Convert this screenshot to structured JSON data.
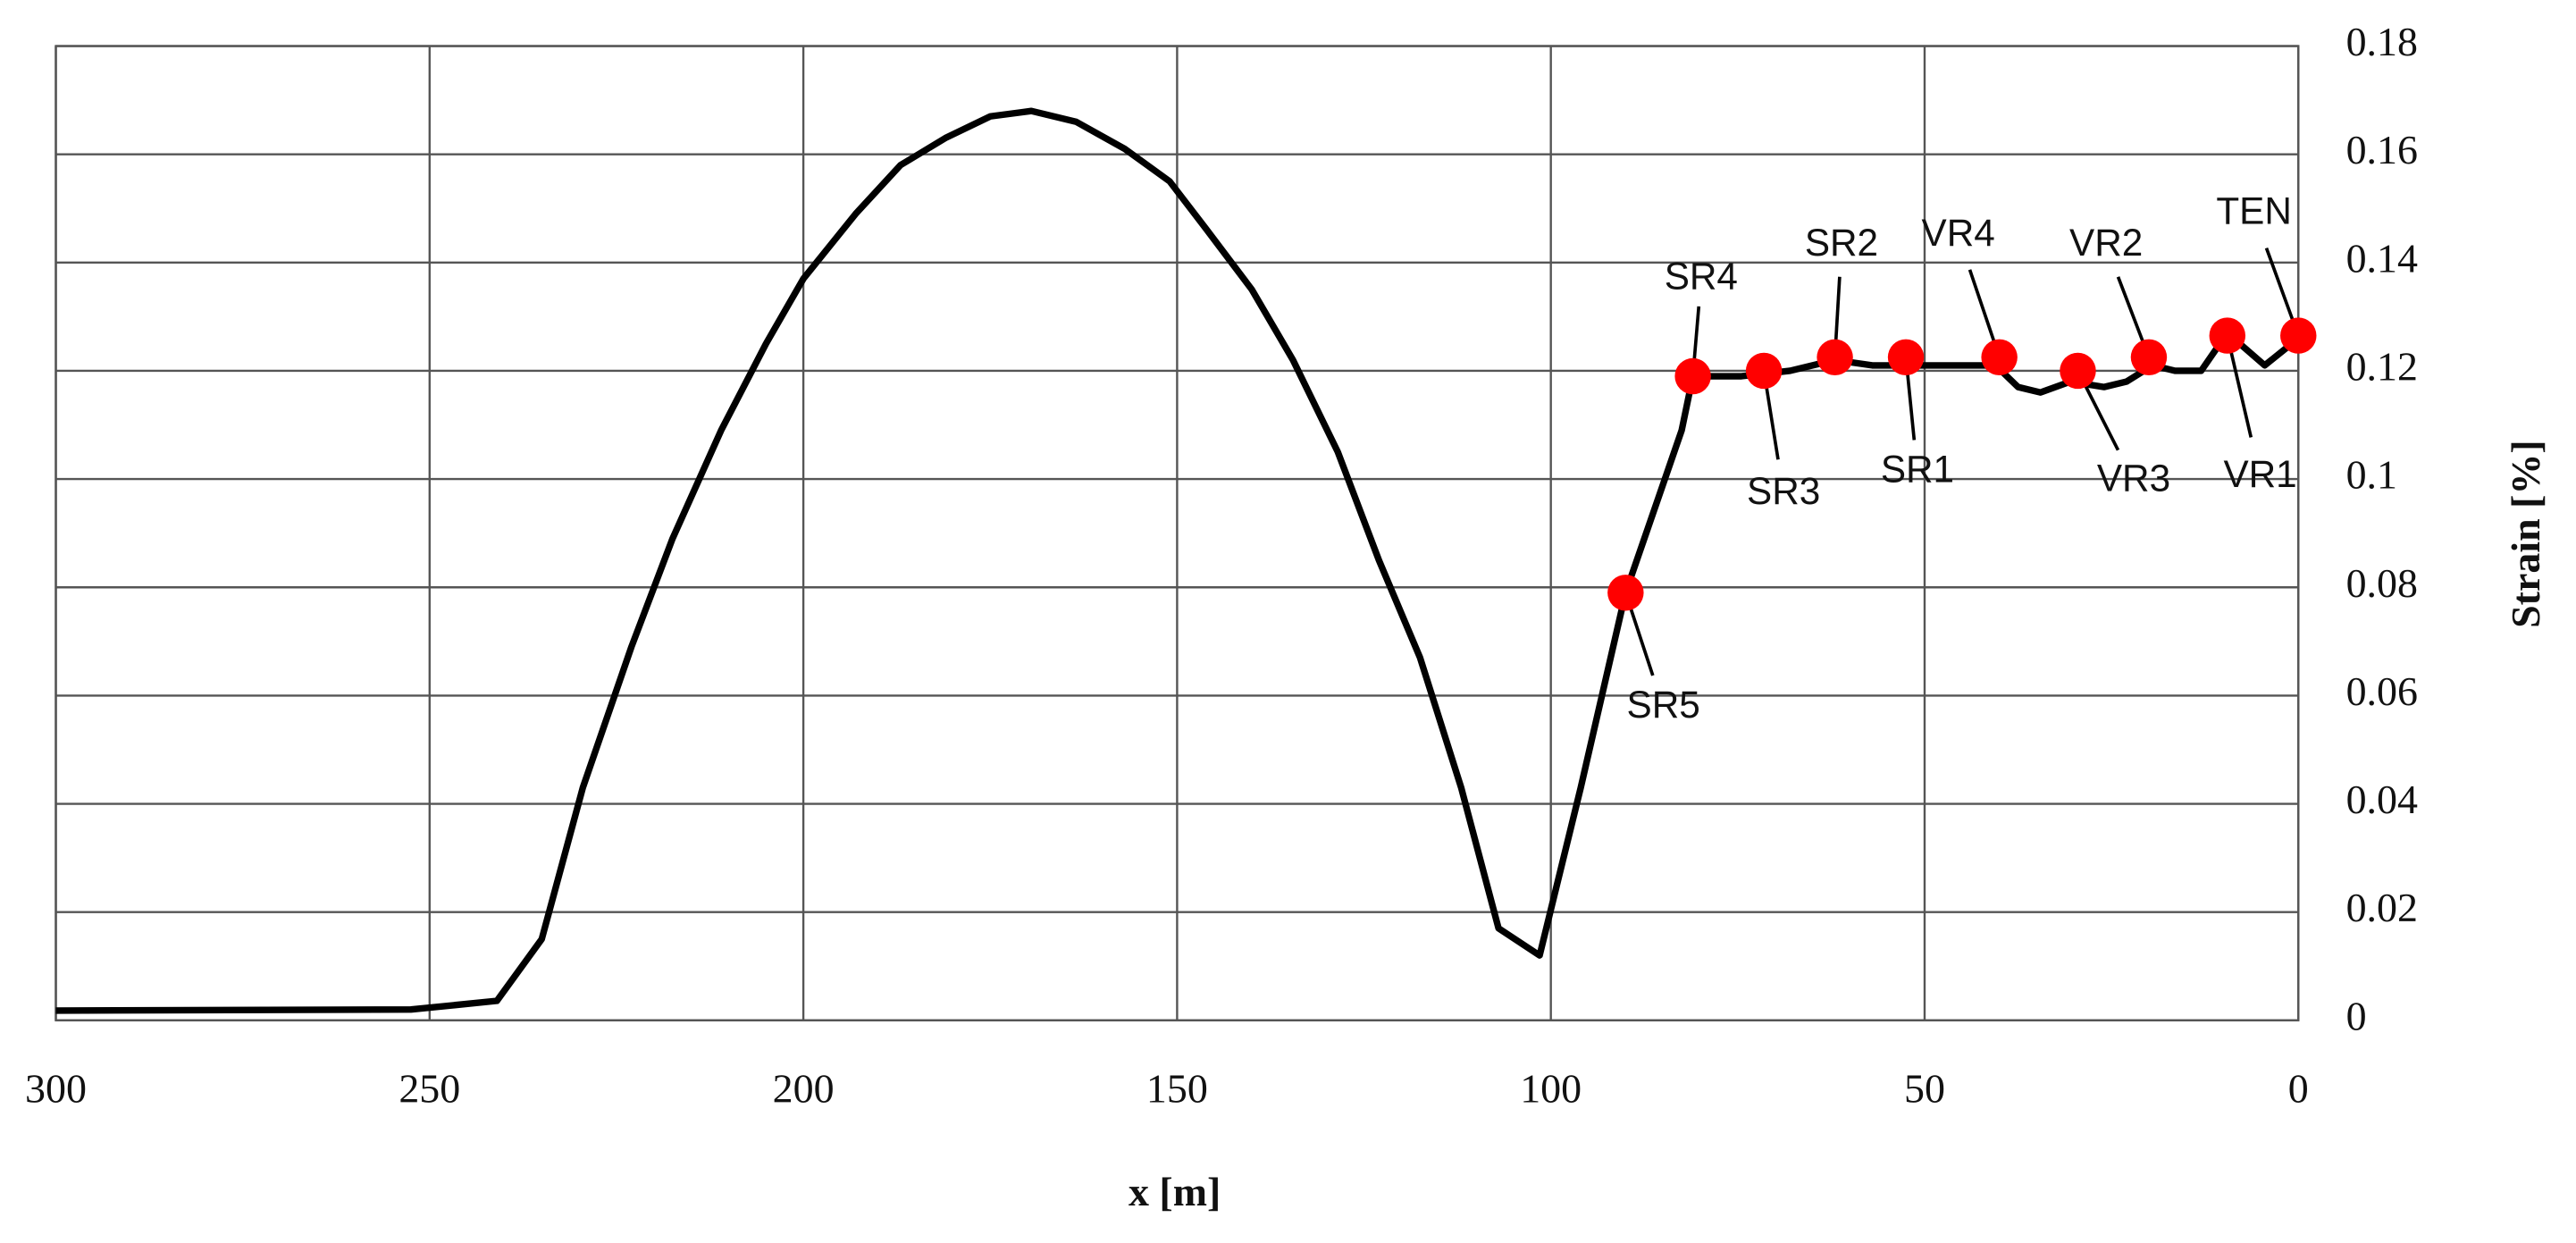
{
  "chart_data": {
    "type": "line",
    "xlabel": "x [m]",
    "ylabel": "Strain [%]",
    "xlim": [
      300,
      0
    ],
    "xticks": [
      300,
      250,
      200,
      150,
      100,
      50,
      0
    ],
    "ylim": [
      0,
      0.18
    ],
    "yticks": [
      0,
      0.02,
      0.04,
      0.06,
      0.08,
      0.1,
      0.12,
      0.14,
      0.16,
      0.18
    ],
    "grid": true,
    "yaxis_side": "right",
    "series": [
      {
        "color": "#000000",
        "x": [
          300,
          252.5,
          241,
          235,
          229.5,
          223,
          217.5,
          211,
          205,
          200,
          193,
          187,
          181,
          175,
          169.5,
          163.5,
          157,
          151,
          146,
          140,
          134.5,
          128.5,
          123,
          117.5,
          112,
          107,
          101.5,
          96,
          90,
          85.5,
          82.5,
          81,
          74.5,
          68,
          62,
          57,
          52.5,
          40.5,
          37.5,
          34.5,
          30.5,
          26,
          23,
          19.5,
          16.5,
          13,
          9.5,
          4.5,
          0
        ],
        "values": [
          0.0018,
          0.002,
          0.0036,
          0.015,
          0.043,
          0.069,
          0.089,
          0.109,
          0.125,
          0.137,
          0.149,
          0.158,
          0.163,
          0.167,
          0.168,
          0.166,
          0.161,
          0.155,
          0.146,
          0.135,
          0.122,
          0.105,
          0.085,
          0.067,
          0.043,
          0.017,
          0.012,
          0.043,
          0.079,
          0.097,
          0.109,
          0.119,
          0.119,
          0.12,
          0.122,
          0.121,
          0.121,
          0.121,
          0.117,
          0.116,
          0.118,
          0.117,
          0.118,
          0.121,
          0.12,
          0.12,
          0.127,
          0.121,
          0.126
        ]
      }
    ],
    "points": {
      "color": "#ff0000",
      "labels": [
        "SR5",
        "SR4",
        "SR3",
        "SR2",
        "SR1",
        "VR4",
        "VR3",
        "VR2",
        "VR1",
        "TEN"
      ],
      "x": [
        90,
        81,
        71.5,
        62,
        52.5,
        40,
        29.5,
        20,
        9.5,
        0
      ],
      "values": [
        0.079,
        0.119,
        0.12,
        0.1225,
        0.1225,
        0.1225,
        0.12,
        0.1225,
        0.1265,
        0.1265
      ]
    }
  }
}
